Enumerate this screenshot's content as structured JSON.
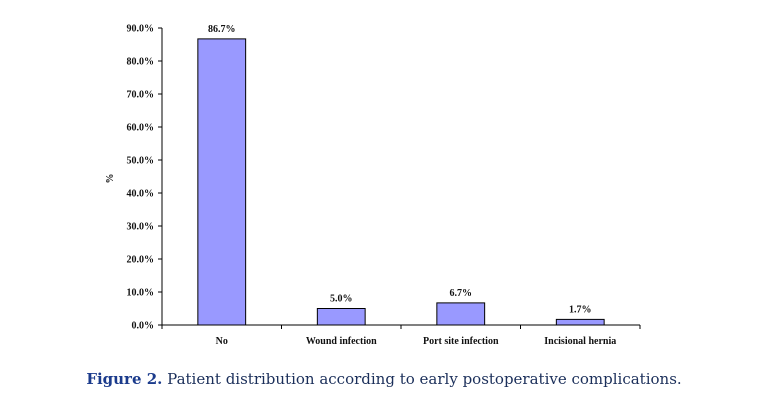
{
  "chart_data": {
    "type": "bar",
    "categories": [
      "No",
      "Wound infection",
      "Port site infection",
      "Incisional hernia"
    ],
    "values": [
      86.7,
      5.0,
      6.7,
      1.7
    ],
    "data_labels": [
      "86.7%",
      "5.0%",
      "6.7%",
      "1.7%"
    ],
    "ylabel": "%",
    "xlabel": "",
    "ylim": [
      0,
      90
    ],
    "yticks": [
      0,
      10,
      20,
      30,
      40,
      50,
      60,
      70,
      80,
      90
    ],
    "ytick_labels": [
      "0.0%",
      "10.0%",
      "20.0%",
      "30.0%",
      "40.0%",
      "50.0%",
      "60.0%",
      "70.0%",
      "80.0%",
      "90.0%"
    ],
    "grid": false,
    "bar_color": "#9999ff"
  },
  "caption": {
    "figure_number": "Figure 2.",
    "text": "Patient distribution according to early postoperative complications."
  }
}
